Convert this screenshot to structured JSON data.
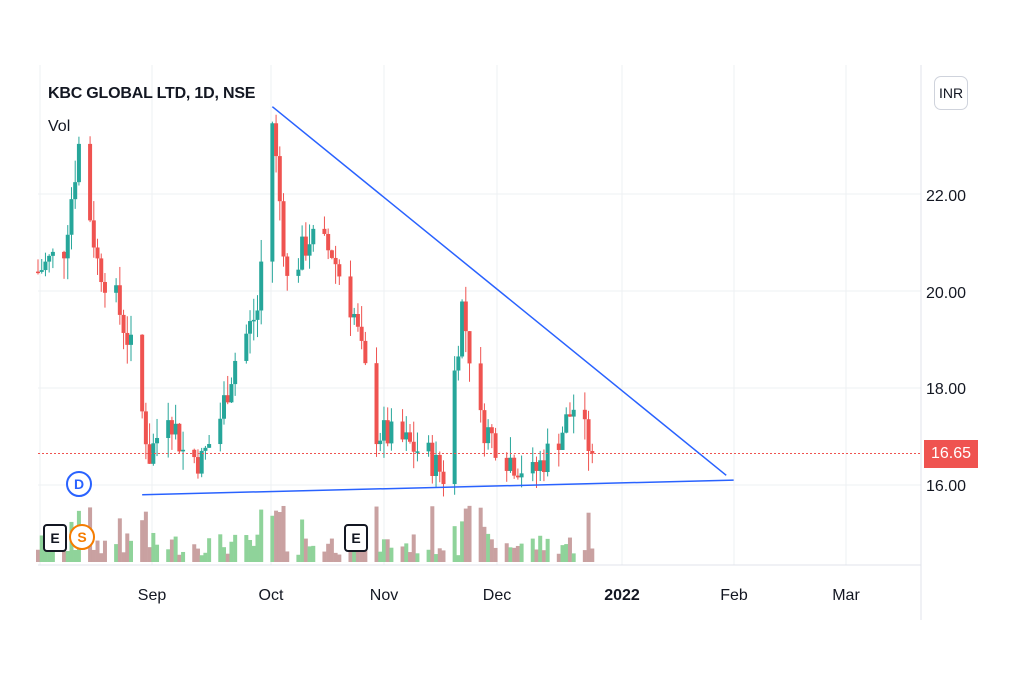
{
  "header": {
    "title": "KBC GLOBAL LTD, 1D, NSE",
    "volume_label": "Vol"
  },
  "currency": "INR",
  "last_price": "16.65",
  "events": {
    "dividend": "D",
    "earnings": "E",
    "split": "S"
  },
  "colors": {
    "up": "#26a69a",
    "down": "#ef5350",
    "volume_up": "#8fd39a",
    "volume_down": "#c9a1a1",
    "trendline": "#2962ff",
    "grid": "#eef0f3",
    "price_line": "#ef5350"
  },
  "chart_data": {
    "type": "candlestick",
    "title": "KBC GLOBAL LTD, 1D, NSE",
    "y_axis": {
      "range": [
        14.5,
        24.0
      ],
      "ticks": [
        "16.00",
        "18.00",
        "20.00",
        "22.00"
      ]
    },
    "x_axis": {
      "ticks": [
        "Sep",
        "Oct",
        "Nov",
        "Dec",
        "2022",
        "Feb",
        "Mar"
      ]
    },
    "grid": true,
    "approx_close_series": [
      {
        "date": "2021-08-16",
        "close": 20.4
      },
      {
        "date": "2021-08-23",
        "close": 20.9
      },
      {
        "date": "2021-08-27",
        "close": 23.0
      },
      {
        "date": "2021-09-01",
        "close": 20.6
      },
      {
        "date": "2021-09-06",
        "close": 19.8
      },
      {
        "date": "2021-09-10",
        "close": 18.8
      },
      {
        "date": "2021-09-15",
        "close": 16.6
      },
      {
        "date": "2021-09-20",
        "close": 17.6
      },
      {
        "date": "2021-09-24",
        "close": 16.7
      },
      {
        "date": "2021-09-29",
        "close": 16.5
      },
      {
        "date": "2021-10-04",
        "close": 17.4
      },
      {
        "date": "2021-10-08",
        "close": 18.6
      },
      {
        "date": "2021-10-14",
        "close": 19.6
      },
      {
        "date": "2021-10-18",
        "close": 23.5
      },
      {
        "date": "2021-10-22",
        "close": 20.2
      },
      {
        "date": "2021-10-28",
        "close": 21.1
      },
      {
        "date": "2021-11-03",
        "close": 20.8
      },
      {
        "date": "2021-11-09",
        "close": 19.5
      },
      {
        "date": "2021-11-15",
        "close": 17.1
      },
      {
        "date": "2021-11-22",
        "close": 16.9
      },
      {
        "date": "2021-11-29",
        "close": 16.6
      },
      {
        "date": "2021-12-03",
        "close": 16.2
      },
      {
        "date": "2021-12-08",
        "close": 19.7
      },
      {
        "date": "2021-12-13",
        "close": 17.3
      },
      {
        "date": "2021-12-20",
        "close": 16.6
      },
      {
        "date": "2021-12-27",
        "close": 16.2
      },
      {
        "date": "2022-01-03",
        "close": 17.0
      },
      {
        "date": "2022-01-07",
        "close": 17.6
      },
      {
        "date": "2022-01-12",
        "close": 16.65
      }
    ],
    "trendlines": [
      {
        "name": "descending resistance",
        "from": {
          "date": "2021-10-18",
          "price": 23.8
        },
        "to": {
          "date": "2022-02-17",
          "price": 16.2
        }
      },
      {
        "name": "support",
        "from": {
          "date": "2021-09-13",
          "price": 15.8
        },
        "to": {
          "date": "2022-02-19",
          "price": 16.1
        }
      }
    ],
    "last_price_line": 16.65
  }
}
